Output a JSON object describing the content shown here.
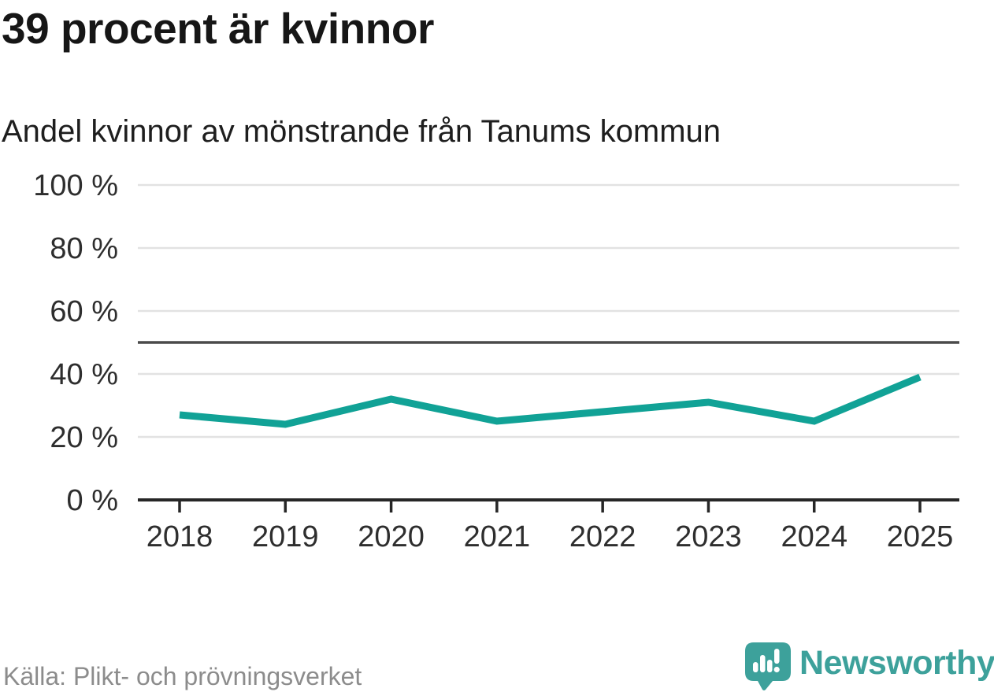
{
  "header": {
    "title": "39 procent är kvinnor",
    "subtitle": "Andel kvinnor av mönstrande från Tanums kommun"
  },
  "footer": {
    "source": "Källa: Plikt- och prövningsverket",
    "brand": "Newsworthy"
  },
  "colors": {
    "line": "#11a296",
    "grid": "#e2e2e2",
    "reference_line": "#4a4a4a",
    "axis": "#262626",
    "tick_label": "#2e2e2e",
    "brand_teal": "#3da19b",
    "source_gray": "#8c8c8c"
  },
  "chart_data": {
    "type": "line",
    "title": "39 procent är kvinnor",
    "subtitle": "Andel kvinnor av mönstrande från Tanums kommun",
    "x": [
      2018,
      2019,
      2020,
      2021,
      2022,
      2023,
      2024,
      2025
    ],
    "series": [
      {
        "name": "Andel kvinnor av mönstrande från Tanums kommun",
        "values": [
          27,
          24,
          32,
          25,
          28,
          31,
          25,
          39
        ]
      }
    ],
    "ylim": [
      0,
      100
    ],
    "yticks": [
      0,
      20,
      40,
      60,
      80,
      100
    ],
    "ytick_suffix": " %",
    "reference_line": 50,
    "grid": true,
    "legend_position": "none",
    "source": "Källa: Plikt- och prövningsverket"
  }
}
